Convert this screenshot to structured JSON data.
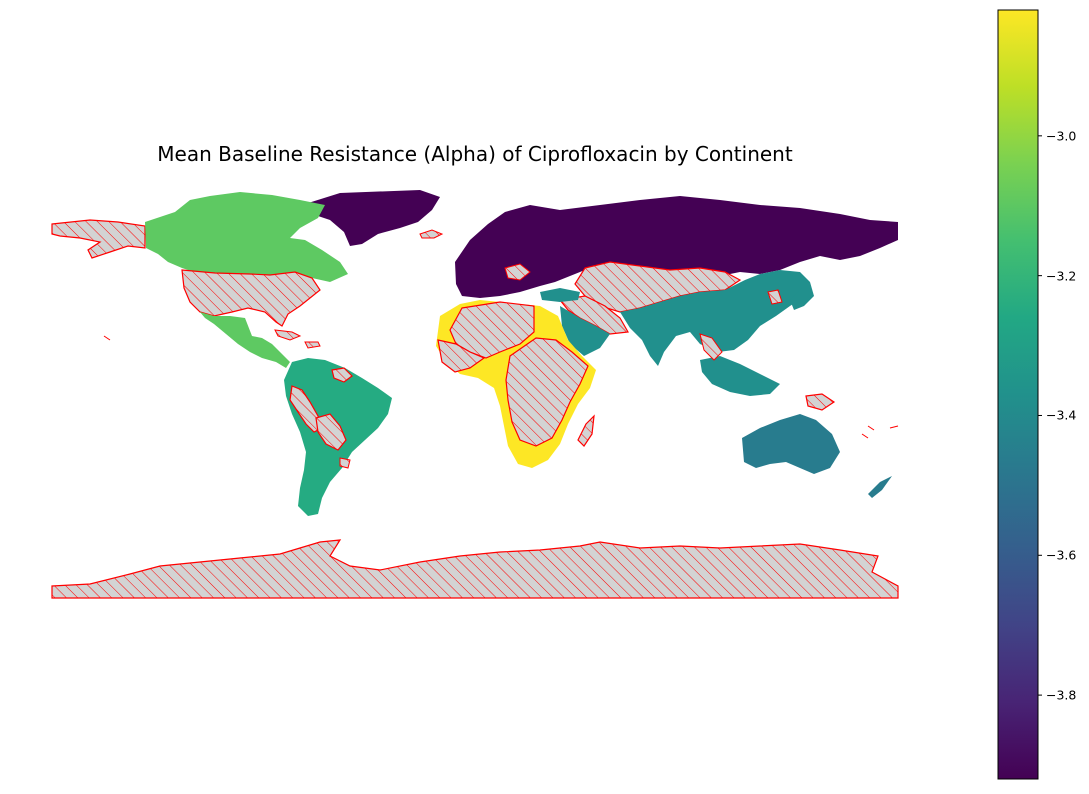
{
  "title": "Mean Baseline Resistance (Alpha) of Ciprofloxacin by Continent",
  "colorbar": {
    "colormap": "viridis",
    "vmin": -3.92,
    "vmax": -2.82,
    "ticks": [
      {
        "value": -3.0,
        "label": "−3.0"
      },
      {
        "value": -3.2,
        "label": "−3.2"
      },
      {
        "value": -3.4,
        "label": "−3.4"
      },
      {
        "value": -3.6,
        "label": "−3.6"
      },
      {
        "value": -3.8,
        "label": "−3.8"
      }
    ]
  },
  "map_data": {
    "type": "choropleth",
    "regions": [
      {
        "name": "Europe",
        "value": -3.91,
        "color": "#440154"
      },
      {
        "name": "Asia",
        "value": -3.36,
        "color": "#21908d"
      },
      {
        "name": "Oceania",
        "value": -3.45,
        "color": "#287c8e"
      },
      {
        "name": "South America",
        "value": -3.27,
        "color": "#25ab82"
      },
      {
        "name": "North America",
        "value": -3.07,
        "color": "#5ec962"
      },
      {
        "name": "Africa",
        "value": -2.83,
        "color": "#fde725"
      }
    ],
    "missing": {
      "fill": "#d3d3d3",
      "edge": "#ff0000",
      "hatch": "///"
    }
  }
}
